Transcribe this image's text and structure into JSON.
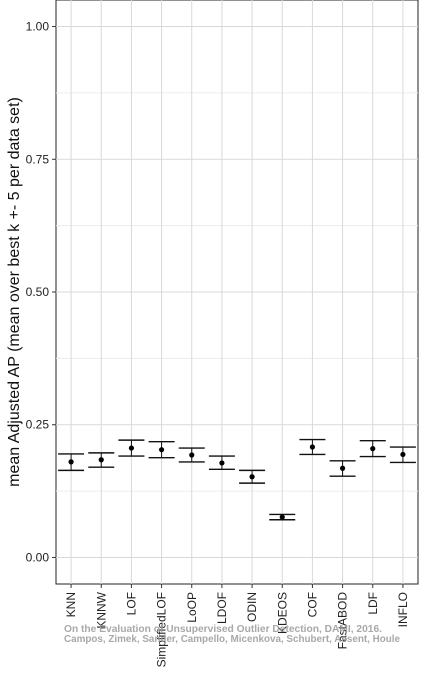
{
  "chart_data": {
    "type": "errorbar",
    "title": "",
    "ylabel": "mean Adjusted AP (mean over best k +- 5 per data set)",
    "xlabel": "",
    "ylim": [
      -0.05,
      1.05
    ],
    "yticks": [
      0.0,
      0.25,
      0.5,
      0.75,
      1.0
    ],
    "ytick_labels": [
      "0.00",
      "0.25",
      "0.50",
      "0.75",
      "1.00"
    ],
    "grid": true,
    "categories": [
      "KNN",
      "KNNW",
      "LOF",
      "SimplifiedLOF",
      "LoOP",
      "LDOF",
      "ODIN",
      "KDEOS",
      "COF",
      "FastABOD",
      "LDF",
      "INFLO"
    ],
    "values": [
      0.18,
      0.184,
      0.206,
      0.203,
      0.193,
      0.178,
      0.152,
      0.076,
      0.208,
      0.168,
      0.205,
      0.194
    ],
    "upper": [
      0.195,
      0.197,
      0.221,
      0.218,
      0.206,
      0.191,
      0.164,
      0.081,
      0.222,
      0.182,
      0.22,
      0.208
    ],
    "lower": [
      0.164,
      0.17,
      0.191,
      0.188,
      0.18,
      0.166,
      0.14,
      0.071,
      0.194,
      0.153,
      0.19,
      0.179
    ]
  },
  "watermark": {
    "line1": "On the Evaluation of Unsupervised Outlier Detection, DAMI, 2016.",
    "line2": "Campos, Zimek, Sander, Campello, Micenkova, Schubert, Assent, Houle"
  }
}
